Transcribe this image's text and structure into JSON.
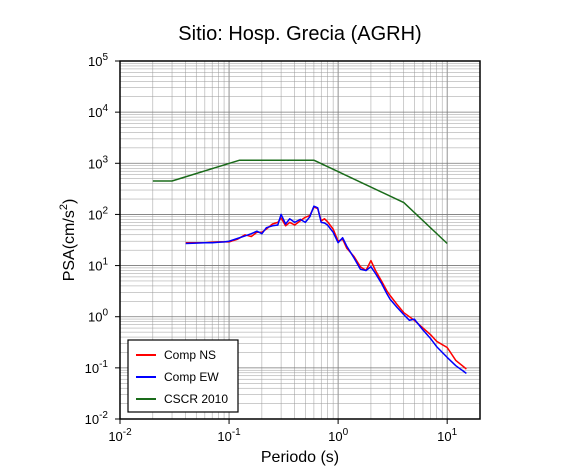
{
  "chart_data": {
    "type": "line",
    "title": "Sitio: Hosp. Grecia (AGRH)",
    "xlabel": "Periodo (s)",
    "ylabel": {
      "base": "PSA(cm/s",
      "sup": "2",
      "end": ")"
    },
    "x_scale": "log",
    "y_scale": "log",
    "xlim": [
      0.01,
      20
    ],
    "ylim": [
      0.01,
      100000
    ],
    "grid": true,
    "legend_position": "bottom-left",
    "x_ticks": [
      {
        "value": 0.01,
        "base": "10",
        "exp": "-2"
      },
      {
        "value": 0.1,
        "base": "10",
        "exp": "-1"
      },
      {
        "value": 1,
        "base": "10",
        "exp": "0"
      },
      {
        "value": 10,
        "base": "10",
        "exp": "1"
      }
    ],
    "y_ticks": [
      {
        "value": 0.01,
        "base": "10",
        "exp": "-2"
      },
      {
        "value": 0.1,
        "base": "10",
        "exp": "-1"
      },
      {
        "value": 1,
        "base": "10",
        "exp": "0"
      },
      {
        "value": 10,
        "base": "10",
        "exp": "1"
      },
      {
        "value": 100,
        "base": "10",
        "exp": "2"
      },
      {
        "value": 1000,
        "base": "10",
        "exp": "3"
      },
      {
        "value": 10000,
        "base": "10",
        "exp": "4"
      },
      {
        "value": 100000,
        "base": "10",
        "exp": "5"
      }
    ],
    "series": [
      {
        "name": "Comp NS",
        "color": "#ff0000",
        "x": [
          0.04,
          0.05,
          0.06,
          0.07,
          0.08,
          0.09,
          0.1,
          0.12,
          0.14,
          0.16,
          0.18,
          0.2,
          0.22,
          0.25,
          0.28,
          0.3,
          0.33,
          0.36,
          0.4,
          0.45,
          0.5,
          0.55,
          0.6,
          0.65,
          0.7,
          0.75,
          0.8,
          0.9,
          1.0,
          1.1,
          1.2,
          1.4,
          1.6,
          1.8,
          2.0,
          2.2,
          2.5,
          2.8,
          3.0,
          3.5,
          4.0,
          4.5,
          5.0,
          6.0,
          7.0,
          8.0,
          10.0,
          12.0,
          15.0
        ],
        "y": [
          28,
          28,
          28,
          28.5,
          29,
          29,
          29,
          33,
          40,
          37,
          45,
          45,
          52,
          65,
          70,
          85,
          60,
          70,
          62,
          75,
          88,
          95,
          140,
          130,
          75,
          82,
          72,
          52,
          30,
          33,
          22,
          15,
          9.5,
          8,
          12.5,
          8,
          5,
          3.2,
          2.6,
          1.7,
          1.2,
          1.0,
          0.85,
          0.6,
          0.45,
          0.33,
          0.25,
          0.14,
          0.095
        ]
      },
      {
        "name": "Comp EW",
        "color": "#0000ff",
        "x": [
          0.04,
          0.05,
          0.06,
          0.07,
          0.08,
          0.09,
          0.1,
          0.12,
          0.14,
          0.16,
          0.18,
          0.2,
          0.22,
          0.25,
          0.28,
          0.3,
          0.33,
          0.36,
          0.4,
          0.45,
          0.5,
          0.55,
          0.6,
          0.65,
          0.7,
          0.75,
          0.8,
          0.9,
          1.0,
          1.1,
          1.2,
          1.4,
          1.6,
          1.8,
          2.0,
          2.2,
          2.5,
          2.8,
          3.0,
          3.5,
          4.0,
          4.5,
          5.0,
          6.0,
          7.0,
          8.0,
          10.0,
          12.0,
          15.0
        ],
        "y": [
          27,
          27.5,
          28,
          28,
          28.5,
          29,
          30,
          34,
          38,
          42,
          47,
          42,
          55,
          60,
          62,
          100,
          65,
          82,
          70,
          80,
          70,
          90,
          145,
          135,
          70,
          68,
          62,
          45,
          28,
          35,
          24,
          14,
          8.5,
          8,
          9.5,
          7,
          4.5,
          2.8,
          2.2,
          1.5,
          1.1,
          0.85,
          0.9,
          0.55,
          0.38,
          0.26,
          0.16,
          0.11,
          0.078
        ]
      },
      {
        "name": "CSCR 2010",
        "color": "#1a6b1a",
        "x": [
          0.02,
          0.03,
          0.125,
          0.6,
          4.0,
          10.0
        ],
        "y": [
          450,
          450,
          1150,
          1150,
          170,
          27
        ]
      }
    ]
  }
}
